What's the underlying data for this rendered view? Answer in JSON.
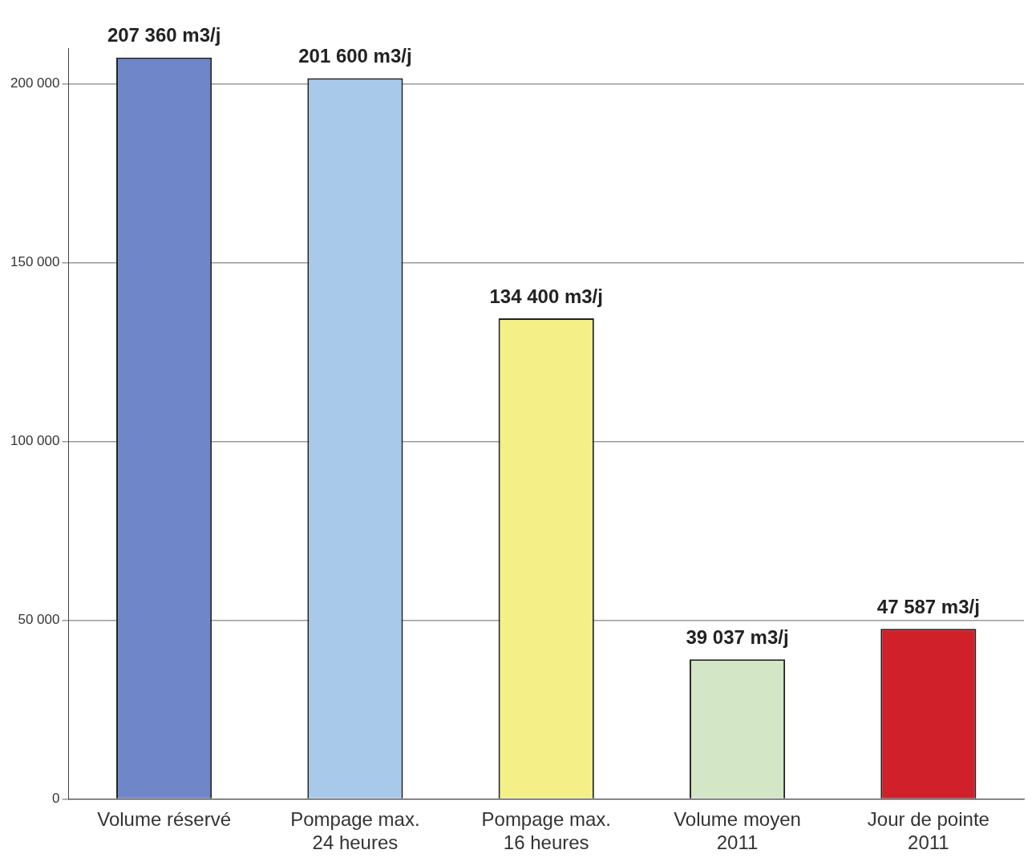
{
  "chart_data": {
    "type": "bar",
    "categories": [
      "Volume réservé",
      "Pompage max.\n24 heures",
      "Pompage max.\n16 heures",
      "Volume moyen\n2011",
      "Jour de pointe\n2011"
    ],
    "values": [
      207360,
      201600,
      134400,
      39037,
      47587
    ],
    "colors": [
      "#6f86c9",
      "#a9c9ea",
      "#f4ef86",
      "#d3e6c6",
      "#d0202a"
    ],
    "value_labels": [
      "207 360 m3/j",
      "201 600 m3/j",
      "134 400 m3/j",
      "39 037 m3/j",
      "47 587 m3/j"
    ],
    "ylim": [
      0,
      210000
    ],
    "yticks": [
      {
        "value": 0,
        "label": "0"
      },
      {
        "value": 50000,
        "label": "50 000"
      },
      {
        "value": 100000,
        "label": "100 000"
      },
      {
        "value": 150000,
        "label": "150 000"
      },
      {
        "value": 200000,
        "label": "200 000"
      }
    ],
    "grid": "y",
    "legend": false
  }
}
